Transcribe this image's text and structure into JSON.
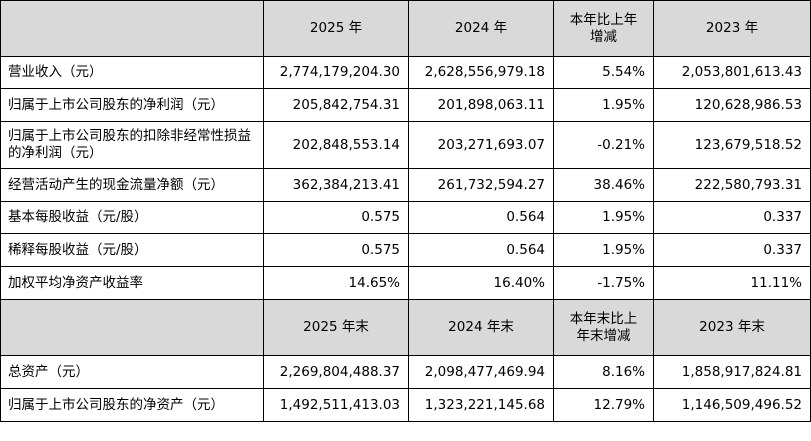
{
  "header1": {
    "columns": [
      "2025 年",
      "2024 年",
      "本年比上年\n增减",
      "2023 年"
    ]
  },
  "rows1": [
    {
      "label": "营业收入（元）",
      "values": [
        "2,774,179,204.30",
        "2,628,556,979.18",
        "5.54%",
        "2,053,801,613.43"
      ]
    },
    {
      "label": "归属于上市公司股东的净利润（元）",
      "values": [
        "205,842,754.31",
        "201,898,063.11",
        "1.95%",
        "120,628,986.53"
      ]
    },
    {
      "label": "归属于上市公司股东的扣除非经常性损益的净利润（元）",
      "values": [
        "202,848,553.14",
        "203,271,693.07",
        "-0.21%",
        "123,679,518.52"
      ]
    },
    {
      "label": "经营活动产生的现金流量净额（元）",
      "values": [
        "362,384,213.41",
        "261,732,594.27",
        "38.46%",
        "222,580,793.31"
      ]
    },
    {
      "label": "基本每股收益（元/股）",
      "values": [
        "0.575",
        "0.564",
        "1.95%",
        "0.337"
      ]
    },
    {
      "label": "稀释每股收益（元/股）",
      "values": [
        "0.575",
        "0.564",
        "1.95%",
        "0.337"
      ]
    },
    {
      "label": "加权平均净资产收益率",
      "values": [
        "14.65%",
        "16.40%",
        "-1.75%",
        "11.11%"
      ]
    }
  ],
  "header2": {
    "columns": [
      "2025 年末",
      "2024 年末",
      "本年末比上\n年末增减",
      "2023 年末"
    ]
  },
  "rows2": [
    {
      "label": "总资产（元）",
      "values": [
        "2,269,804,488.37",
        "2,098,477,469.94",
        "8.16%",
        "1,858,917,824.81"
      ]
    },
    {
      "label": "归属于上市公司股东的净资产（元）",
      "values": [
        "1,492,511,413.03",
        "1,323,221,145.68",
        "12.79%",
        "1,146,509,496.52"
      ]
    }
  ]
}
